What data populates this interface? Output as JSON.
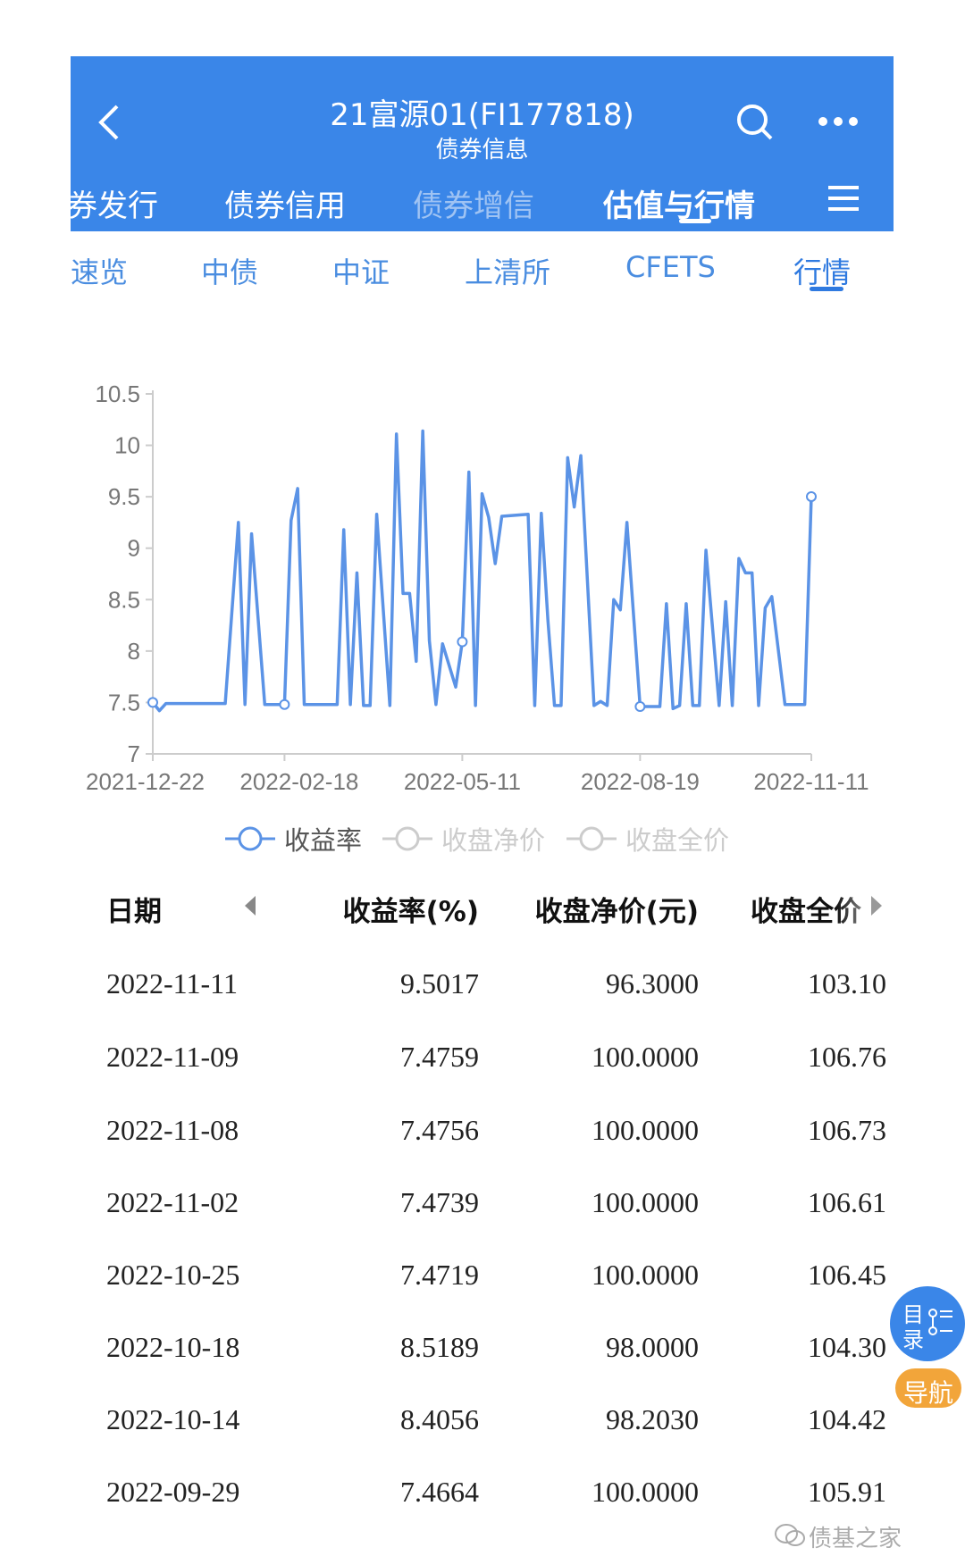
{
  "header": {
    "title": "21富源01(FI177818)",
    "subtitle": "债券信息",
    "tabs": [
      {
        "label": "券发行"
      },
      {
        "label": "债券信用"
      },
      {
        "label": "债券增信"
      },
      {
        "label": "估值与行情"
      }
    ],
    "active_tab": "估值与行情"
  },
  "subtabs": [
    {
      "label": "速览"
    },
    {
      "label": "中债"
    },
    {
      "label": "中证"
    },
    {
      "label": "上清所"
    },
    {
      "label": "CFETS"
    },
    {
      "label": "行情"
    }
  ],
  "active_subtab": "行情",
  "chart_data": {
    "type": "line",
    "ylim": [
      7,
      10.5
    ],
    "yticks": [
      "7",
      "7.5",
      "8",
      "8.5",
      "9",
      "9.5",
      "10",
      "10.5"
    ],
    "x_range": [
      0,
      100
    ],
    "xticks": [
      {
        "i": 0,
        "label": "2021-12-22"
      },
      {
        "i": 20,
        "label": "2022-02-18"
      },
      {
        "i": 47,
        "label": "2022-05-11"
      },
      {
        "i": 74,
        "label": "2022-08-19"
      },
      {
        "i": 100,
        "label": "2022-11-11"
      }
    ],
    "legend": [
      {
        "name": "收益率",
        "active": true
      },
      {
        "name": "收盘净价",
        "active": false
      },
      {
        "name": "收盘全价",
        "active": false
      }
    ],
    "legend_position": "bottom",
    "series": [
      {
        "name": "收益率",
        "color": "#5b93e6",
        "points": [
          [
            0,
            7.5
          ],
          [
            1,
            7.42
          ],
          [
            2,
            7.49
          ],
          [
            11,
            7.49
          ],
          [
            13,
            9.25
          ],
          [
            14,
            7.48
          ],
          [
            15,
            9.14
          ],
          [
            17,
            7.48
          ],
          [
            20,
            7.48
          ],
          [
            21,
            9.27
          ],
          [
            22,
            9.58
          ],
          [
            23,
            7.48
          ],
          [
            28,
            7.48
          ],
          [
            29,
            9.18
          ],
          [
            30,
            7.48
          ],
          [
            31,
            8.76
          ],
          [
            32,
            7.47
          ],
          [
            33,
            7.47
          ],
          [
            34,
            9.33
          ],
          [
            36,
            7.47
          ],
          [
            37,
            10.11
          ],
          [
            38,
            8.56
          ],
          [
            39,
            8.56
          ],
          [
            40,
            7.9
          ],
          [
            41,
            10.14
          ],
          [
            42,
            8.1
          ],
          [
            43,
            7.48
          ],
          [
            44,
            8.07
          ],
          [
            46,
            7.65
          ],
          [
            47,
            8.09
          ],
          [
            48,
            9.74
          ],
          [
            49,
            7.47
          ],
          [
            50,
            9.53
          ],
          [
            51,
            9.3
          ],
          [
            52,
            8.85
          ],
          [
            53,
            9.31
          ],
          [
            57,
            9.33
          ],
          [
            58,
            7.47
          ],
          [
            59,
            9.34
          ],
          [
            60,
            8.3
          ],
          [
            61,
            7.47
          ],
          [
            62,
            7.47
          ],
          [
            63,
            9.88
          ],
          [
            64,
            9.4
          ],
          [
            65,
            9.9
          ],
          [
            67,
            7.47
          ],
          [
            68,
            7.51
          ],
          [
            69,
            7.47
          ],
          [
            70,
            8.5
          ],
          [
            71,
            8.4
          ],
          [
            72,
            9.25
          ],
          [
            74,
            7.46
          ],
          [
            75,
            7.46
          ],
          [
            77,
            7.46
          ],
          [
            78,
            8.46
          ],
          [
            79,
            7.44
          ],
          [
            80,
            7.47
          ],
          [
            81,
            8.46
          ],
          [
            82,
            7.47
          ],
          [
            83,
            7.47
          ],
          [
            84,
            8.98
          ],
          [
            86,
            7.47
          ],
          [
            87,
            8.48
          ],
          [
            88,
            7.47
          ],
          [
            89,
            8.9
          ],
          [
            90,
            8.76
          ],
          [
            91,
            8.76
          ],
          [
            92,
            7.47
          ],
          [
            93,
            8.42
          ],
          [
            94,
            8.53
          ],
          [
            96,
            7.48
          ],
          [
            99,
            7.48
          ],
          [
            100,
            9.5017
          ]
        ]
      }
    ]
  },
  "table": {
    "headers": [
      "日期",
      "收益率(%)",
      "收盘净价(元)",
      "收盘全价"
    ],
    "rows": [
      [
        "2022-11-11",
        "9.5017",
        "96.3000",
        "103.10"
      ],
      [
        "2022-11-09",
        "7.4759",
        "100.0000",
        "106.76"
      ],
      [
        "2022-11-08",
        "7.4756",
        "100.0000",
        "106.73"
      ],
      [
        "2022-11-02",
        "7.4739",
        "100.0000",
        "106.61"
      ],
      [
        "2022-10-25",
        "7.4719",
        "100.0000",
        "106.45"
      ],
      [
        "2022-10-18",
        "8.5189",
        "98.0000",
        "104.30"
      ],
      [
        "2022-10-14",
        "8.4056",
        "98.2030",
        "104.42"
      ],
      [
        "2022-09-29",
        "7.4664",
        "100.0000",
        "105.91"
      ]
    ]
  },
  "float_button": {
    "label_top": "目",
    "label_bottom": "录",
    "pill_label": "导航"
  },
  "watermark": "债基之家",
  "colors": {
    "header": "#3a86e8",
    "line": "#5b93e6",
    "pill": "#f2a53a"
  }
}
